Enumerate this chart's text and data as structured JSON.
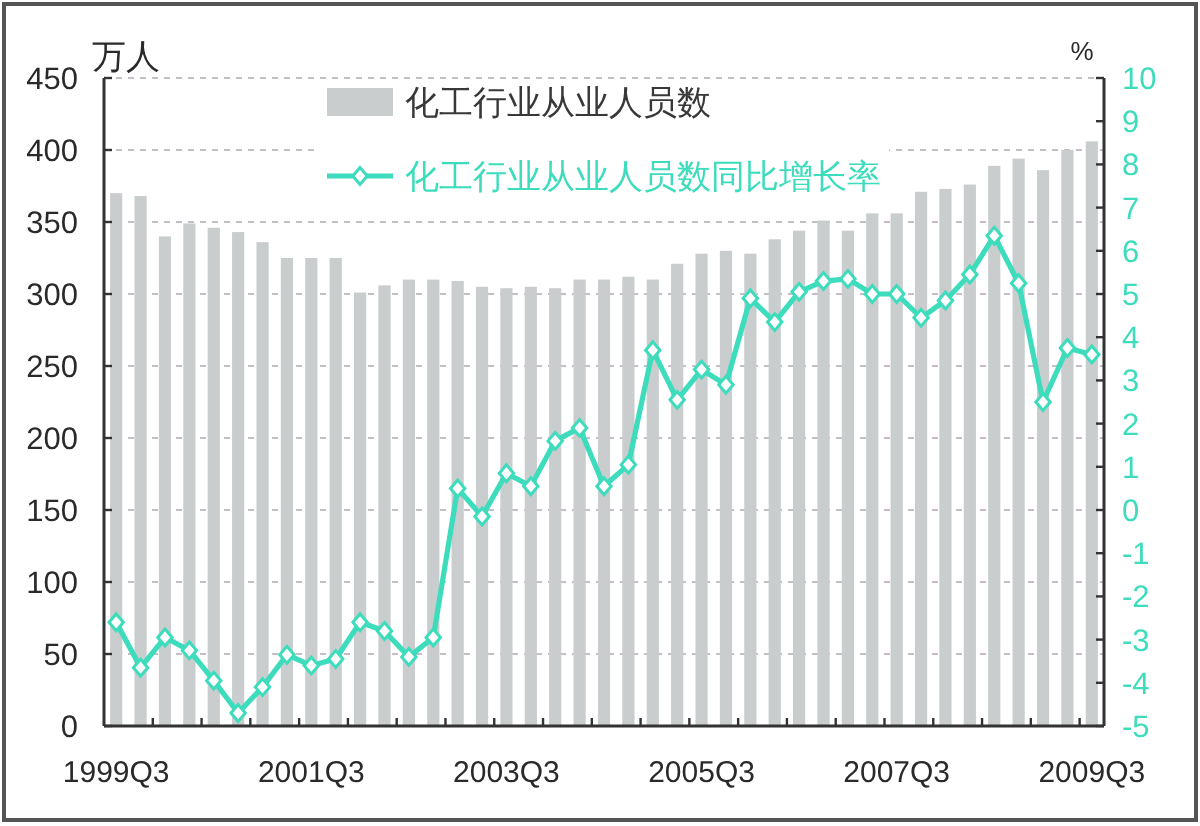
{
  "chart_data": {
    "type": "bar",
    "ylabel": "万人",
    "y2label": "%",
    "categories": [
      "1999Q3",
      null,
      null,
      null,
      null,
      null,
      null,
      null,
      "2001Q3",
      null,
      null,
      null,
      null,
      null,
      null,
      null,
      "2003Q3",
      null,
      null,
      null,
      null,
      null,
      null,
      null,
      "2005Q3",
      null,
      null,
      null,
      null,
      null,
      null,
      null,
      "2007Q3",
      null,
      null,
      null,
      null,
      null,
      null,
      null,
      "2009Q3"
    ],
    "ylim": [
      0,
      450
    ],
    "yticks": [
      0,
      50,
      100,
      150,
      200,
      250,
      300,
      350,
      400,
      450
    ],
    "y2lim": [
      -5,
      10
    ],
    "y2ticks": [
      -5,
      -4,
      -3,
      -2,
      -1,
      0,
      1,
      2,
      3,
      4,
      5,
      6,
      7,
      8,
      9,
      10
    ],
    "grid": "y",
    "legend": "top",
    "marker": "diamond",
    "series": [
      {
        "name": "化工行业从业人员数",
        "color": "#c9cdcd",
        "values": [
          370,
          368,
          340,
          349,
          346,
          343,
          336,
          325,
          325,
          325,
          301,
          306,
          310,
          310,
          309,
          305,
          304,
          305,
          304,
          310,
          310,
          312,
          310,
          321,
          328,
          330,
          328,
          338,
          344,
          351,
          344,
          356,
          356,
          371,
          373,
          376,
          389,
          394,
          386,
          400,
          406
        ]
      },
      {
        "name": "化工行业从业人员数同比增长率",
        "type": "line",
        "axis": "y2",
        "color": "#3ddcbc",
        "values": [
          -2.6,
          -3.65,
          -2.95,
          -3.25,
          -3.95,
          -4.7,
          -4.1,
          -3.35,
          -3.6,
          -3.45,
          -2.6,
          -2.8,
          -3.4,
          -2.95,
          0.5,
          -0.15,
          0.85,
          0.55,
          1.6,
          1.9,
          0.55,
          1.05,
          3.7,
          2.55,
          3.25,
          2.9,
          4.9,
          4.35,
          5.05,
          5.3,
          5.35,
          5.0,
          5.0,
          4.45,
          4.85,
          5.45,
          6.35,
          5.25,
          2.5,
          3.75,
          3.6
        ]
      }
    ]
  }
}
